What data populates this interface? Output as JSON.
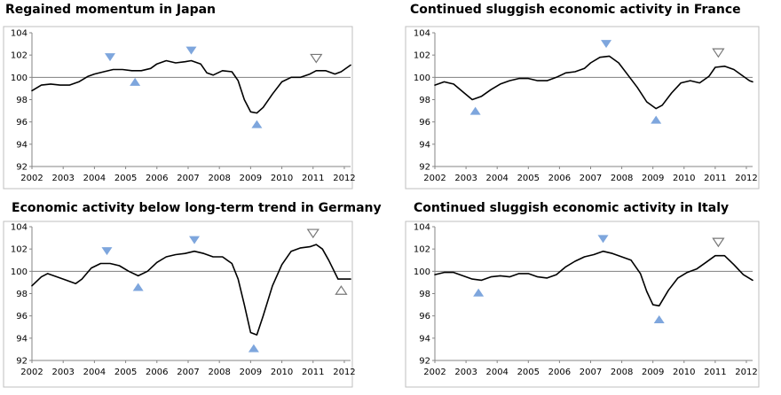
{
  "colors": {
    "line": "#000000",
    "baseline": "#7f7f7f",
    "frame": "#bfbfbf",
    "peak_fill": "#7ea6dd",
    "provisional_stroke": "#777777"
  },
  "chart_data": [
    {
      "id": "japan",
      "type": "line",
      "title": "Regained momentum in Japan",
      "x_ticks": [
        "2002",
        "2003",
        "2004",
        "2005",
        "2006",
        "2007",
        "2008",
        "2009",
        "2010",
        "2011",
        "2012"
      ],
      "y_ticks": [
        "92",
        "94",
        "96",
        "98",
        "100",
        "102",
        "104"
      ],
      "ylim": [
        92,
        104
      ],
      "xlim": [
        2002,
        2012.2
      ],
      "reference_line": 100,
      "series": [
        {
          "name": "Japan",
          "points": [
            [
              2002.0,
              98.8
            ],
            [
              2002.3,
              99.3
            ],
            [
              2002.6,
              99.4
            ],
            [
              2002.9,
              99.3
            ],
            [
              2003.2,
              99.3
            ],
            [
              2003.5,
              99.6
            ],
            [
              2003.8,
              100.1
            ],
            [
              2004.0,
              100.3
            ],
            [
              2004.3,
              100.5
            ],
            [
              2004.6,
              100.7
            ],
            [
              2004.9,
              100.7
            ],
            [
              2005.2,
              100.6
            ],
            [
              2005.5,
              100.6
            ],
            [
              2005.8,
              100.8
            ],
            [
              2006.0,
              101.2
            ],
            [
              2006.3,
              101.5
            ],
            [
              2006.6,
              101.3
            ],
            [
              2006.9,
              101.4
            ],
            [
              2007.1,
              101.5
            ],
            [
              2007.4,
              101.2
            ],
            [
              2007.6,
              100.4
            ],
            [
              2007.8,
              100.2
            ],
            [
              2008.1,
              100.6
            ],
            [
              2008.4,
              100.5
            ],
            [
              2008.6,
              99.7
            ],
            [
              2008.8,
              98.0
            ],
            [
              2009.0,
              96.9
            ],
            [
              2009.2,
              96.8
            ],
            [
              2009.4,
              97.3
            ],
            [
              2009.7,
              98.5
            ],
            [
              2010.0,
              99.6
            ],
            [
              2010.3,
              100.0
            ],
            [
              2010.6,
              100.0
            ],
            [
              2010.9,
              100.3
            ],
            [
              2011.1,
              100.6
            ],
            [
              2011.4,
              100.6
            ],
            [
              2011.7,
              100.3
            ],
            [
              2011.9,
              100.5
            ],
            [
              2012.2,
              101.1
            ]
          ]
        }
      ],
      "markers": [
        {
          "type": "peak",
          "x": 2004.5,
          "y": 101.8
        },
        {
          "type": "trough",
          "x": 2005.3,
          "y": 99.6
        },
        {
          "type": "peak",
          "x": 2007.1,
          "y": 102.4
        },
        {
          "type": "trough",
          "x": 2009.2,
          "y": 95.8
        },
        {
          "type": "provisional-peak",
          "x": 2011.1,
          "y": 101.7
        }
      ]
    },
    {
      "id": "france",
      "type": "line",
      "title": "Continued sluggish economic activity in France",
      "x_ticks": [
        "2002",
        "2003",
        "2004",
        "2005",
        "2006",
        "2007",
        "2008",
        "2009",
        "2010",
        "2011",
        "2012"
      ],
      "y_ticks": [
        "92",
        "94",
        "96",
        "98",
        "100",
        "102",
        "104"
      ],
      "ylim": [
        92,
        104
      ],
      "xlim": [
        2002,
        2012.2
      ],
      "reference_line": 100,
      "series": [
        {
          "name": "France",
          "points": [
            [
              2002.0,
              99.3
            ],
            [
              2002.3,
              99.6
            ],
            [
              2002.6,
              99.4
            ],
            [
              2002.9,
              98.7
            ],
            [
              2003.2,
              98.0
            ],
            [
              2003.5,
              98.3
            ],
            [
              2003.8,
              98.9
            ],
            [
              2004.1,
              99.4
            ],
            [
              2004.4,
              99.7
            ],
            [
              2004.7,
              99.9
            ],
            [
              2005.0,
              99.9
            ],
            [
              2005.3,
              99.7
            ],
            [
              2005.6,
              99.7
            ],
            [
              2005.9,
              100.0
            ],
            [
              2006.2,
              100.4
            ],
            [
              2006.5,
              100.5
            ],
            [
              2006.8,
              100.8
            ],
            [
              2007.0,
              101.3
            ],
            [
              2007.3,
              101.8
            ],
            [
              2007.6,
              101.9
            ],
            [
              2007.9,
              101.3
            ],
            [
              2008.2,
              100.2
            ],
            [
              2008.5,
              99.1
            ],
            [
              2008.8,
              97.8
            ],
            [
              2009.1,
              97.2
            ],
            [
              2009.3,
              97.5
            ],
            [
              2009.6,
              98.6
            ],
            [
              2009.9,
              99.5
            ],
            [
              2010.2,
              99.7
            ],
            [
              2010.5,
              99.5
            ],
            [
              2010.8,
              100.1
            ],
            [
              2011.0,
              100.9
            ],
            [
              2011.3,
              101.0
            ],
            [
              2011.6,
              100.7
            ],
            [
              2011.9,
              100.1
            ],
            [
              2012.1,
              99.7
            ],
            [
              2012.2,
              99.6
            ]
          ]
        }
      ],
      "markers": [
        {
          "type": "trough",
          "x": 2003.3,
          "y": 97.0
        },
        {
          "type": "peak",
          "x": 2007.5,
          "y": 103.0
        },
        {
          "type": "trough",
          "x": 2009.1,
          "y": 96.2
        },
        {
          "type": "provisional-peak",
          "x": 2011.1,
          "y": 102.2
        }
      ]
    },
    {
      "id": "germany",
      "type": "line",
      "title": "Economic activity below long-term trend in Germany",
      "x_ticks": [
        "2002",
        "2003",
        "2004",
        "2005",
        "2006",
        "2007",
        "2008",
        "2009",
        "2010",
        "2011",
        "2012"
      ],
      "y_ticks": [
        "92",
        "94",
        "96",
        "98",
        "100",
        "102",
        "104"
      ],
      "ylim": [
        92,
        104
      ],
      "xlim": [
        2002,
        2012.2
      ],
      "reference_line": 100,
      "series": [
        {
          "name": "Germany",
          "points": [
            [
              2002.0,
              98.7
            ],
            [
              2002.3,
              99.5
            ],
            [
              2002.5,
              99.8
            ],
            [
              2002.8,
              99.5
            ],
            [
              2003.1,
              99.2
            ],
            [
              2003.4,
              98.9
            ],
            [
              2003.6,
              99.3
            ],
            [
              2003.9,
              100.3
            ],
            [
              2004.2,
              100.7
            ],
            [
              2004.5,
              100.7
            ],
            [
              2004.8,
              100.5
            ],
            [
              2005.1,
              100.0
            ],
            [
              2005.4,
              99.6
            ],
            [
              2005.7,
              100.0
            ],
            [
              2006.0,
              100.8
            ],
            [
              2006.3,
              101.3
            ],
            [
              2006.6,
              101.5
            ],
            [
              2006.9,
              101.6
            ],
            [
              2007.2,
              101.8
            ],
            [
              2007.5,
              101.6
            ],
            [
              2007.8,
              101.3
            ],
            [
              2008.1,
              101.3
            ],
            [
              2008.4,
              100.7
            ],
            [
              2008.6,
              99.3
            ],
            [
              2008.8,
              97.0
            ],
            [
              2009.0,
              94.5
            ],
            [
              2009.2,
              94.3
            ],
            [
              2009.4,
              96.0
            ],
            [
              2009.7,
              98.7
            ],
            [
              2010.0,
              100.6
            ],
            [
              2010.3,
              101.8
            ],
            [
              2010.6,
              102.1
            ],
            [
              2010.9,
              102.2
            ],
            [
              2011.1,
              102.4
            ],
            [
              2011.3,
              102.0
            ],
            [
              2011.5,
              101.0
            ],
            [
              2011.8,
              99.3
            ],
            [
              2012.2,
              99.3
            ]
          ]
        }
      ],
      "markers": [
        {
          "type": "peak",
          "x": 2004.4,
          "y": 101.8
        },
        {
          "type": "trough",
          "x": 2005.4,
          "y": 98.6
        },
        {
          "type": "peak",
          "x": 2007.2,
          "y": 102.8
        },
        {
          "type": "trough",
          "x": 2009.1,
          "y": 93.1
        },
        {
          "type": "provisional-peak",
          "x": 2011.0,
          "y": 103.4
        },
        {
          "type": "provisional-trough",
          "x": 2011.9,
          "y": 98.3
        }
      ]
    },
    {
      "id": "italy",
      "type": "line",
      "title": "Continued sluggish economic activity in Italy",
      "x_ticks": [
        "2002",
        "2003",
        "2004",
        "2005",
        "2006",
        "2007",
        "2008",
        "2009",
        "2010",
        "2011",
        "2012"
      ],
      "y_ticks": [
        "92",
        "94",
        "96",
        "98",
        "100",
        "102",
        "104"
      ],
      "ylim": [
        92,
        104
      ],
      "xlim": [
        2002,
        2012.2
      ],
      "reference_line": 100,
      "series": [
        {
          "name": "Italy",
          "points": [
            [
              2002.0,
              99.7
            ],
            [
              2002.3,
              99.9
            ],
            [
              2002.6,
              99.9
            ],
            [
              2002.9,
              99.6
            ],
            [
              2003.2,
              99.3
            ],
            [
              2003.5,
              99.2
            ],
            [
              2003.8,
              99.5
            ],
            [
              2004.1,
              99.6
            ],
            [
              2004.4,
              99.5
            ],
            [
              2004.7,
              99.8
            ],
            [
              2005.0,
              99.8
            ],
            [
              2005.3,
              99.5
            ],
            [
              2005.6,
              99.4
            ],
            [
              2005.9,
              99.7
            ],
            [
              2006.2,
              100.4
            ],
            [
              2006.5,
              100.9
            ],
            [
              2006.8,
              101.3
            ],
            [
              2007.1,
              101.5
            ],
            [
              2007.4,
              101.8
            ],
            [
              2007.7,
              101.6
            ],
            [
              2008.0,
              101.3
            ],
            [
              2008.3,
              101.0
            ],
            [
              2008.6,
              99.8
            ],
            [
              2008.8,
              98.2
            ],
            [
              2009.0,
              97.0
            ],
            [
              2009.2,
              96.9
            ],
            [
              2009.5,
              98.3
            ],
            [
              2009.8,
              99.4
            ],
            [
              2010.1,
              99.9
            ],
            [
              2010.4,
              100.2
            ],
            [
              2010.7,
              100.8
            ],
            [
              2011.0,
              101.4
            ],
            [
              2011.3,
              101.4
            ],
            [
              2011.6,
              100.6
            ],
            [
              2011.9,
              99.7
            ],
            [
              2012.2,
              99.2
            ]
          ]
        }
      ],
      "markers": [
        {
          "type": "trough",
          "x": 2003.4,
          "y": 98.1
        },
        {
          "type": "peak",
          "x": 2007.4,
          "y": 102.9
        },
        {
          "type": "trough",
          "x": 2009.2,
          "y": 95.7
        },
        {
          "type": "provisional-peak",
          "x": 2011.1,
          "y": 102.6
        }
      ]
    }
  ]
}
